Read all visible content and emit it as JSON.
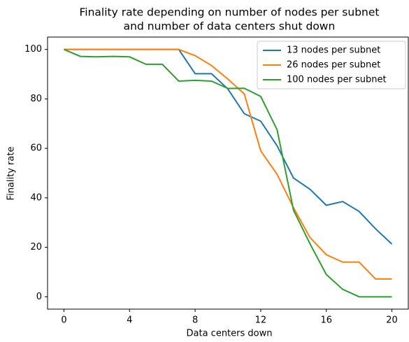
{
  "chart_data": {
    "type": "line",
    "title": [
      "Finality rate depending on number of nodes per subnet",
      "and number of data centers shut down"
    ],
    "x_label": "Data centers down",
    "y_label": "Finality rate",
    "x": [
      0,
      1,
      2,
      3,
      4,
      5,
      6,
      7,
      8,
      9,
      10,
      11,
      12,
      13,
      14,
      15,
      16,
      17,
      18,
      19,
      20
    ],
    "series": [
      {
        "name": "13 nodes per subnet",
        "color": "#1f77b4",
        "values": [
          100,
          100,
          100,
          100,
          100,
          100,
          100,
          100,
          90.2,
          90.2,
          84,
          74,
          71,
          61,
          48,
          43.5,
          37,
          38.5,
          34.5,
          27.5,
          21.3
        ]
      },
      {
        "name": "26 nodes per subnet",
        "color": "#ff7f0e",
        "values": [
          100,
          100,
          100,
          100,
          100,
          100,
          100,
          100,
          97.5,
          93.5,
          88,
          82,
          59,
          49.5,
          36,
          24,
          17,
          14,
          14,
          7.2,
          7.2
        ]
      },
      {
        "name": "100 nodes per subnet",
        "color": "#2ca02c",
        "values": [
          100,
          97.2,
          97,
          97.2,
          97,
          94,
          94,
          87.2,
          87.5,
          87.2,
          84.2,
          84.3,
          81,
          67.5,
          35,
          21.5,
          9,
          3,
          0,
          0,
          0
        ]
      }
    ],
    "xlim": [
      -1,
      21
    ],
    "xticks": [
      0,
      4,
      8,
      12,
      16,
      20
    ],
    "ylim": [
      -5,
      105
    ],
    "yticks": [
      0,
      20,
      40,
      60,
      80,
      100
    ],
    "grid": false,
    "legend": "upper right"
  }
}
